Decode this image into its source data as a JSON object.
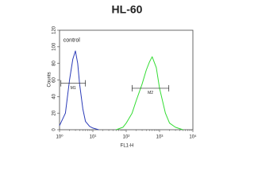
{
  "chart_data": {
    "type": "line",
    "title": "HL-60",
    "xlabel": "FL1-H",
    "ylabel": "Counts",
    "xscale": "log",
    "xlim": [
      1,
      10000
    ],
    "ylim": [
      0,
      120
    ],
    "xticks": [
      {
        "value": 1,
        "label": "10⁰"
      },
      {
        "value": 10,
        "label": "10¹"
      },
      {
        "value": 100,
        "label": "10²"
      },
      {
        "value": 1000,
        "label": "10³"
      },
      {
        "value": 10000,
        "label": "10⁴"
      }
    ],
    "yticks": [
      0,
      20,
      40,
      60,
      80,
      100,
      120
    ],
    "annotations": [
      {
        "text": "control",
        "x": 1.3,
        "y": 108
      }
    ],
    "markers": [
      {
        "label": "M1",
        "range": [
          1.1,
          6
        ],
        "y": 56
      },
      {
        "label": "M2",
        "range": [
          150,
          1900
        ],
        "y": 50
      }
    ],
    "series": [
      {
        "color": "#2b3bb8",
        "x": [
          1,
          1.5,
          2,
          2.5,
          3,
          3.5,
          4,
          5,
          6,
          8,
          10,
          15
        ],
        "values": [
          5,
          20,
          60,
          85,
          95,
          80,
          55,
          25,
          10,
          4,
          2,
          0
        ]
      },
      {
        "color": "#33dd33",
        "x": [
          50,
          80,
          100,
          150,
          200,
          300,
          400,
          500,
          600,
          800,
          1000,
          1500,
          2000,
          3000,
          5000
        ],
        "values": [
          0,
          3,
          8,
          20,
          35,
          55,
          72,
          82,
          88,
          75,
          50,
          20,
          8,
          3,
          0
        ]
      }
    ]
  }
}
